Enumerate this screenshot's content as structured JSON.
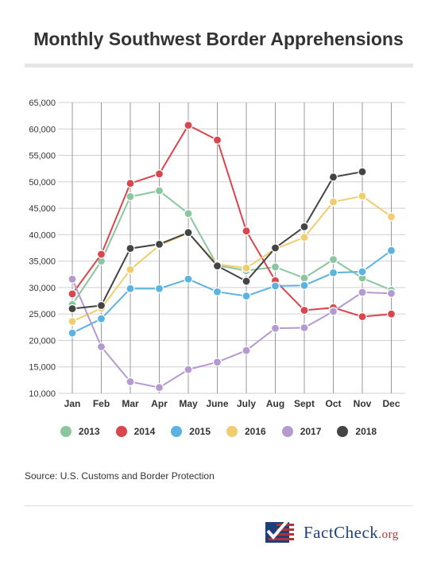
{
  "title": "Monthly Southwest Border Apprehensions",
  "source": "Source: U.S. Customs and Border Protection",
  "logo": {
    "main": "FactCheck",
    "suffix": ".org"
  },
  "chart_data": {
    "type": "line",
    "title": "Monthly Southwest Border Apprehensions",
    "categories": [
      "Jan",
      "Feb",
      "Mar",
      "Apr",
      "May",
      "June",
      "July",
      "Aug",
      "Sept",
      "Oct",
      "Nov",
      "Dec"
    ],
    "y_ticks": [
      "10,000",
      "15,000",
      "20,000",
      "25,000",
      "30,000",
      "35,000",
      "40,000",
      "45,000",
      "50,000",
      "55,000",
      "60,000",
      "65,000"
    ],
    "ylim": [
      10000,
      65000
    ],
    "grid": true,
    "legend_position": "bottom",
    "series": [
      {
        "name": "2013",
        "color": "#8cc6a0",
        "values": [
          26800,
          35000,
          47200,
          48300,
          44000,
          34200,
          33200,
          33900,
          31800,
          35300,
          31800,
          29500
        ]
      },
      {
        "name": "2014",
        "color": "#d9464e",
        "values": [
          28800,
          36300,
          49700,
          51500,
          60700,
          57900,
          40700,
          31300,
          25700,
          26200,
          24500,
          25000
        ]
      },
      {
        "name": "2015",
        "color": "#5db3e0",
        "values": [
          21400,
          24100,
          29800,
          29800,
          31600,
          29200,
          28400,
          30300,
          30400,
          32800,
          33000,
          37000
        ]
      },
      {
        "name": "2016",
        "color": "#f0cd6e",
        "values": [
          23600,
          26100,
          33400,
          38000,
          40300,
          34400,
          33700,
          37300,
          39500,
          46200,
          47300,
          43400
        ]
      },
      {
        "name": "2017",
        "color": "#b59ad0",
        "values": [
          31600,
          18800,
          12200,
          11100,
          14500,
          15900,
          18100,
          22300,
          22400,
          25500,
          29100,
          28900
        ]
      },
      {
        "name": "2018",
        "color": "#444444",
        "values": [
          26000,
          26600,
          37400,
          38200,
          40400,
          34100,
          31200,
          37500,
          41500,
          50900,
          51900,
          null
        ]
      }
    ]
  }
}
